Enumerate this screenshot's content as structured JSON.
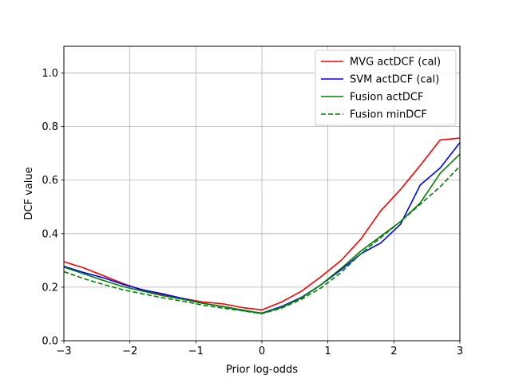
{
  "chart_data": {
    "type": "line",
    "title": "",
    "xlabel": "Prior log-odds",
    "ylabel": "DCF value",
    "xlim": [
      -3,
      3
    ],
    "ylim": [
      0,
      1.1
    ],
    "xticks": [
      -3,
      -2,
      -1,
      0,
      1,
      2,
      3
    ],
    "xtick_labels": [
      "−3",
      "−2",
      "−1",
      "0",
      "1",
      "2",
      "3"
    ],
    "yticks": [
      0,
      0.2,
      0.4,
      0.6,
      0.8,
      1.0
    ],
    "ytick_labels": [
      "0.0",
      "0.2",
      "0.4",
      "0.6",
      "0.8",
      "1.0"
    ],
    "grid": true,
    "legend_position": "top-right",
    "x": [
      -3.0,
      -2.7,
      -2.4,
      -2.1,
      -1.8,
      -1.5,
      -1.2,
      -0.9,
      -0.6,
      -0.3,
      0.0,
      0.3,
      0.6,
      0.9,
      1.2,
      1.5,
      1.8,
      2.1,
      2.4,
      2.7,
      3.0
    ],
    "series": [
      {
        "name": "MVG actDCF (cal)",
        "color": "#ff0000",
        "dash": "solid",
        "values": [
          0.295,
          0.272,
          0.243,
          0.213,
          0.188,
          0.172,
          0.158,
          0.145,
          0.138,
          0.124,
          0.115,
          0.145,
          0.185,
          0.24,
          0.3,
          0.38,
          0.485,
          0.565,
          0.655,
          0.75,
          0.757
        ]
      },
      {
        "name": "SVM actDCF (cal)",
        "color": "#0000ff",
        "dash": "solid",
        "values": [
          0.278,
          0.255,
          0.235,
          0.21,
          0.19,
          0.175,
          0.158,
          0.14,
          0.128,
          0.113,
          0.103,
          0.128,
          0.162,
          0.21,
          0.265,
          0.325,
          0.365,
          0.435,
          0.582,
          0.645,
          0.74
        ]
      },
      {
        "name": "Fusion actDCF",
        "color": "#008000",
        "dash": "solid",
        "values": [
          0.275,
          0.25,
          0.225,
          0.202,
          0.185,
          0.168,
          0.155,
          0.14,
          0.128,
          0.115,
          0.102,
          0.125,
          0.16,
          0.21,
          0.27,
          0.335,
          0.39,
          0.445,
          0.515,
          0.625,
          0.697
        ]
      },
      {
        "name": "Fusion minDCF",
        "color": "#008000",
        "dash": "dashed",
        "values": [
          0.258,
          0.232,
          0.21,
          0.19,
          0.175,
          0.16,
          0.148,
          0.133,
          0.122,
          0.112,
          0.101,
          0.122,
          0.155,
          0.198,
          0.255,
          0.325,
          0.385,
          0.445,
          0.51,
          0.575,
          0.652
        ]
      }
    ]
  }
}
